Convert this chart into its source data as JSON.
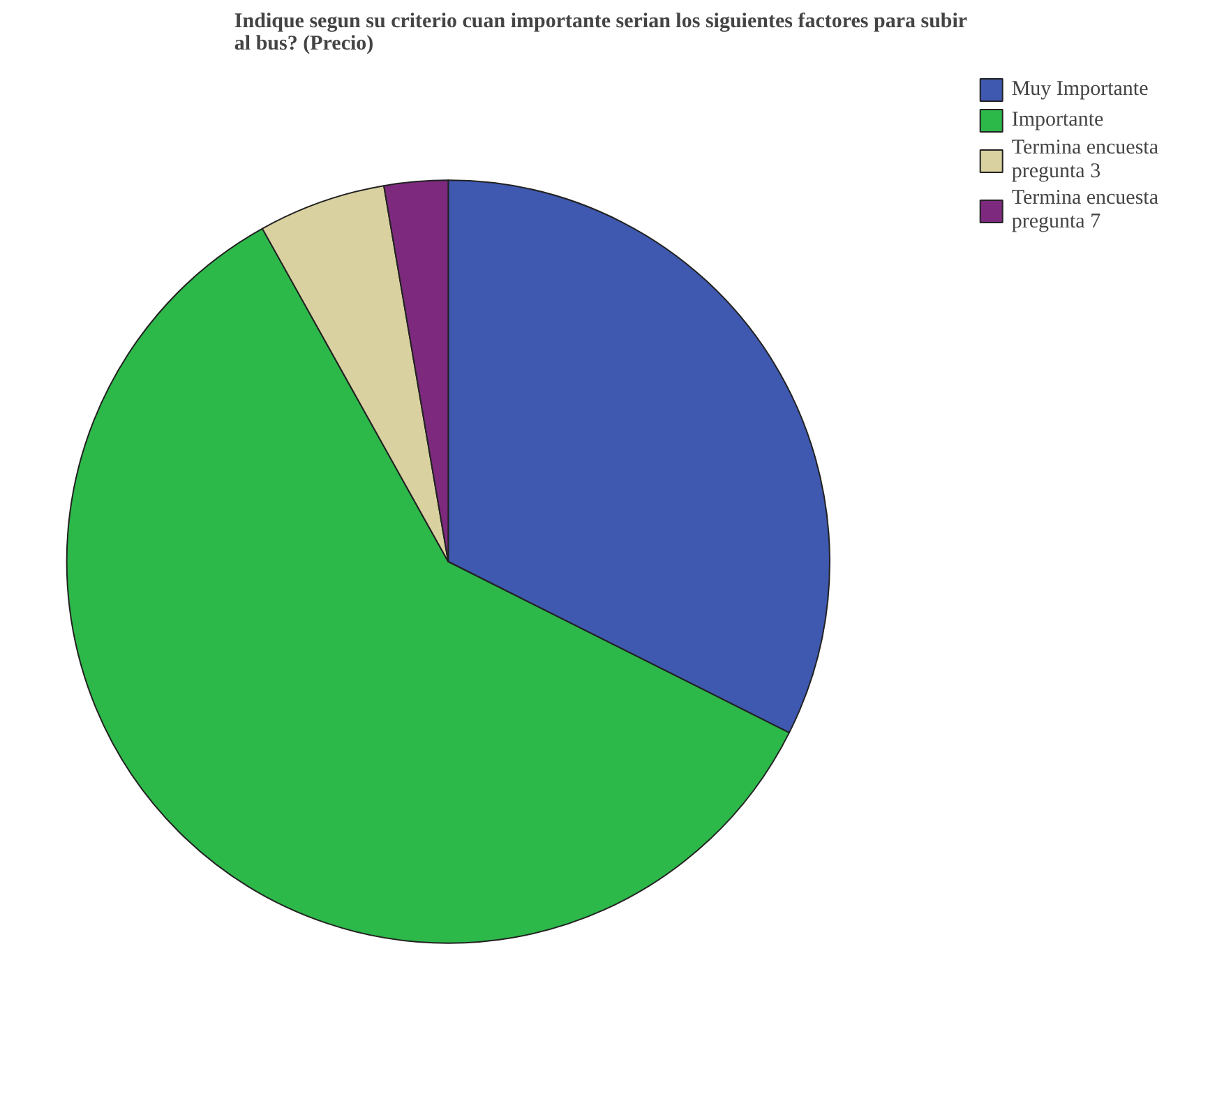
{
  "chart_data": {
    "type": "pie",
    "title": "Indique segun su criterio cuan importante serian los siguientes factores para subir al bus? (Precio)",
    "categories": [
      "Muy Importante",
      "Importante",
      "Termina encuesta pregunta 3",
      "Termina encuesta pregunta 7"
    ],
    "values": [
      32.4,
      59.5,
      5.4,
      2.7
    ],
    "colors": [
      "#3f58b0",
      "#2db84a",
      "#d9d1a0",
      "#7d2a7e"
    ],
    "legend": "top right"
  }
}
